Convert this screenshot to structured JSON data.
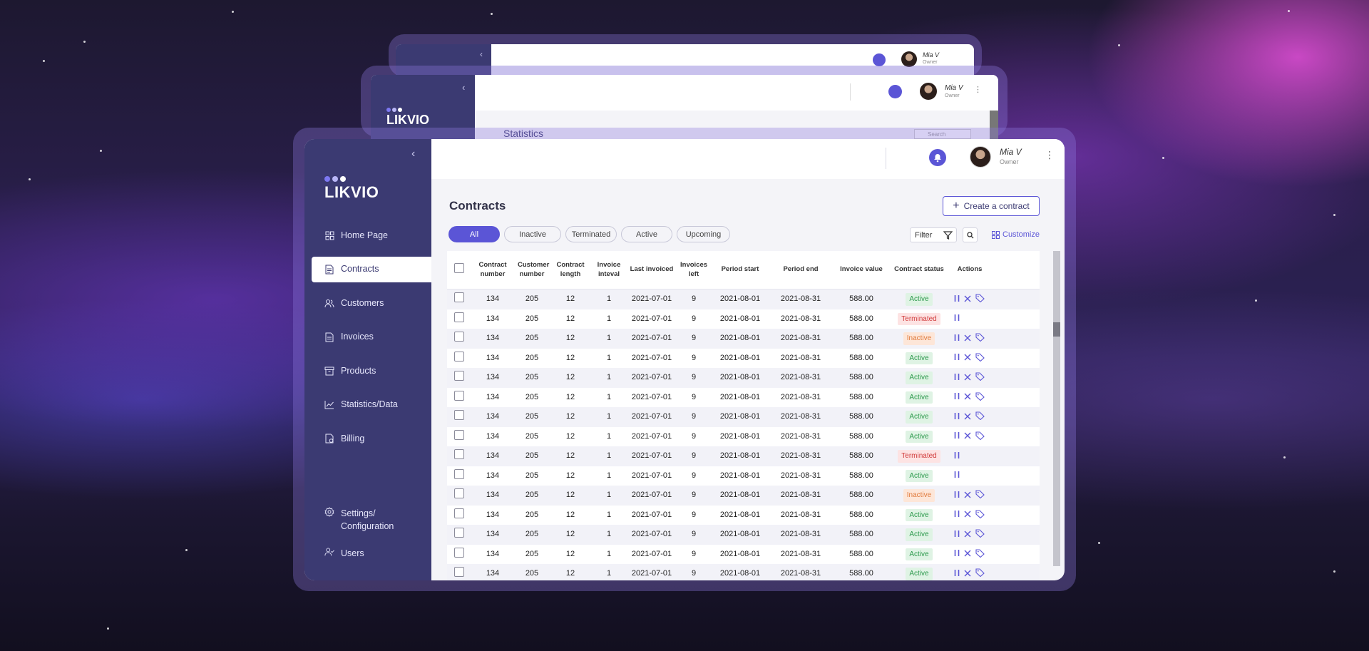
{
  "app": {
    "brand": "LIKVIO",
    "logo_dots": [
      "#7d78f2",
      "#b9b6f7",
      "#ffffff"
    ]
  },
  "colors": {
    "accent": "#5b55d6",
    "sidebar": "#3b3a72"
  },
  "background_windows": [
    {
      "user_name": "Mia V",
      "user_role": "Owner"
    },
    {
      "brand": "LIKVIO",
      "user_name": "Mia V",
      "user_role": "Owner",
      "page_title": "Statistics",
      "search_placeholder": "Search"
    }
  ],
  "sidebar": {
    "items": [
      {
        "label": "Home Page",
        "icon": "grid-icon"
      },
      {
        "label": "Contracts",
        "icon": "document-icon",
        "active": true
      },
      {
        "label": "Customers",
        "icon": "users-icon"
      },
      {
        "label": "Invoices",
        "icon": "invoice-icon"
      },
      {
        "label": "Products",
        "icon": "box-icon"
      },
      {
        "label": "Statistics/Data",
        "icon": "chart-icon"
      },
      {
        "label": "Billing",
        "icon": "billing-icon"
      }
    ],
    "bottom": [
      {
        "label": "Settings/\nConfiguration",
        "icon": "gear-icon"
      },
      {
        "label": "Users",
        "icon": "user-check-icon"
      }
    ]
  },
  "header": {
    "user_name": "Mia V",
    "user_role": "Owner"
  },
  "main": {
    "title": "Contracts",
    "create_label": "Create a contract",
    "tabs": [
      "All",
      "Inactive",
      "Terminated",
      "Active",
      "Upcoming"
    ],
    "active_tab": "All",
    "filter_label": "Filter",
    "customize_label": "Customize"
  },
  "table": {
    "columns": [
      "Contract number",
      "Customer number",
      "Contract length",
      "Invoice inteval",
      "Last invoiced",
      "Invoices left",
      "Period start",
      "Period end",
      "Invoice value",
      "Contract status",
      "Actions"
    ],
    "rows": [
      [
        "134",
        "205",
        "12",
        "1",
        "2021-07-01",
        "9",
        "2021-08-01",
        "2021-08-31",
        "588.00",
        "Active"
      ],
      [
        "134",
        "205",
        "12",
        "1",
        "2021-07-01",
        "9",
        "2021-08-01",
        "2021-08-31",
        "588.00",
        "Terminated"
      ],
      [
        "134",
        "205",
        "12",
        "1",
        "2021-07-01",
        "9",
        "2021-08-01",
        "2021-08-31",
        "588.00",
        "Inactive"
      ],
      [
        "134",
        "205",
        "12",
        "1",
        "2021-07-01",
        "9",
        "2021-08-01",
        "2021-08-31",
        "588.00",
        "Active"
      ],
      [
        "134",
        "205",
        "12",
        "1",
        "2021-07-01",
        "9",
        "2021-08-01",
        "2021-08-31",
        "588.00",
        "Active"
      ],
      [
        "134",
        "205",
        "12",
        "1",
        "2021-07-01",
        "9",
        "2021-08-01",
        "2021-08-31",
        "588.00",
        "Active"
      ],
      [
        "134",
        "205",
        "12",
        "1",
        "2021-07-01",
        "9",
        "2021-08-01",
        "2021-08-31",
        "588.00",
        "Active"
      ],
      [
        "134",
        "205",
        "12",
        "1",
        "2021-07-01",
        "9",
        "2021-08-01",
        "2021-08-31",
        "588.00",
        "Active"
      ],
      [
        "134",
        "205",
        "12",
        "1",
        "2021-07-01",
        "9",
        "2021-08-01",
        "2021-08-31",
        "588.00",
        "Terminated"
      ],
      [
        "134",
        "205",
        "12",
        "1",
        "2021-07-01",
        "9",
        "2021-08-01",
        "2021-08-31",
        "588.00",
        "Active"
      ],
      [
        "134",
        "205",
        "12",
        "1",
        "2021-07-01",
        "9",
        "2021-08-01",
        "2021-08-31",
        "588.00",
        "Inactive"
      ],
      [
        "134",
        "205",
        "12",
        "1",
        "2021-07-01",
        "9",
        "2021-08-01",
        "2021-08-31",
        "588.00",
        "Active"
      ],
      [
        "134",
        "205",
        "12",
        "1",
        "2021-07-01",
        "9",
        "2021-08-01",
        "2021-08-31",
        "588.00",
        "Active"
      ],
      [
        "134",
        "205",
        "12",
        "1",
        "2021-07-01",
        "9",
        "2021-08-01",
        "2021-08-31",
        "588.00",
        "Active"
      ],
      [
        "134",
        "205",
        "12",
        "1",
        "2021-07-01",
        "9",
        "2021-08-01",
        "2021-08-31",
        "588.00",
        "Active"
      ]
    ],
    "row_actions": [
      [
        "pause",
        "cancel",
        "tag"
      ],
      [
        "pause"
      ],
      [
        "pause",
        "cancel",
        "tag"
      ],
      [
        "pause",
        "cancel",
        "tag"
      ],
      [
        "pause",
        "cancel",
        "tag"
      ],
      [
        "pause",
        "cancel",
        "tag"
      ],
      [
        "pause",
        "cancel",
        "tag"
      ],
      [
        "pause",
        "cancel",
        "tag"
      ],
      [
        "pause"
      ],
      [
        "pause"
      ],
      [
        "pause",
        "cancel",
        "tag"
      ],
      [
        "pause",
        "cancel",
        "tag"
      ],
      [
        "pause",
        "cancel",
        "tag"
      ],
      [
        "pause",
        "cancel",
        "tag"
      ],
      [
        "pause",
        "cancel",
        "tag"
      ]
    ]
  }
}
